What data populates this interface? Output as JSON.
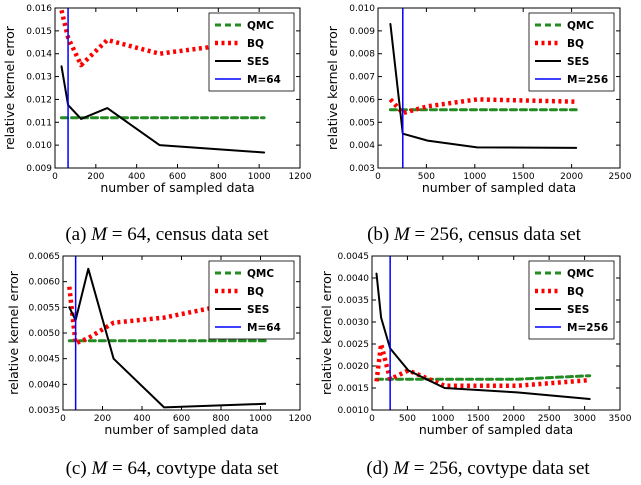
{
  "chart_data": [
    {
      "type": "line",
      "caption": {
        "label": "(a)",
        "param": "M",
        "eq": "= 64,",
        "rest": "census data set"
      },
      "xlabel": "number of sampled data",
      "ylabel": "relative kernel error",
      "xlim": [
        0,
        1200
      ],
      "ylim": [
        0.009,
        0.016
      ],
      "xticks": [
        "0",
        "200",
        "400",
        "600",
        "800",
        "1000",
        "1200"
      ],
      "yticks": [
        "0.009",
        "0.010",
        "0.011",
        "0.012",
        "0.013",
        "0.014",
        "0.015",
        "0.016"
      ],
      "vline": 64,
      "legend_position": "top-right",
      "series": [
        {
          "name": "QMC",
          "color": "#228b22",
          "style": "dashed",
          "x": [
            32,
            64,
            128,
            256,
            512,
            1024
          ],
          "y": [
            0.0112,
            0.0112,
            0.0112,
            0.0112,
            0.0112,
            0.0112
          ]
        },
        {
          "name": "BQ",
          "color": "#ff0000",
          "style": "dotted",
          "x": [
            32,
            64,
            128,
            256,
            512,
            1024
          ],
          "y": [
            0.0159,
            0.0147,
            0.0135,
            0.0146,
            0.014,
            0.0146
          ]
        },
        {
          "name": "SES",
          "color": "#000000",
          "style": "solid",
          "x": [
            32,
            64,
            128,
            256,
            512,
            1024
          ],
          "y": [
            0.01345,
            0.01175,
            0.01115,
            0.01162,
            0.01,
            0.00968
          ]
        },
        {
          "name": "M=64",
          "color": "#0000ff",
          "style": "vline"
        }
      ]
    },
    {
      "type": "line",
      "caption": {
        "label": "(b)",
        "param": "M",
        "eq": "= 256,",
        "rest": "census data set"
      },
      "xlabel": "number of sampled data",
      "ylabel": "relative kernel error",
      "xlim": [
        0,
        2500
      ],
      "ylim": [
        0.003,
        0.01
      ],
      "xticks": [
        "0",
        "500",
        "1000",
        "1500",
        "2000",
        "2500"
      ],
      "yticks": [
        "0.003",
        "0.004",
        "0.005",
        "0.006",
        "0.007",
        "0.008",
        "0.009",
        "0.010"
      ],
      "vline": 256,
      "legend_position": "top-right",
      "series": [
        {
          "name": "QMC",
          "color": "#228b22",
          "style": "dashed",
          "x": [
            128,
            256,
            512,
            1024,
            2048
          ],
          "y": [
            0.00555,
            0.00555,
            0.00555,
            0.00555,
            0.00555
          ]
        },
        {
          "name": "BQ",
          "color": "#ff0000",
          "style": "dotted",
          "x": [
            128,
            256,
            512,
            1024,
            2048
          ],
          "y": [
            0.006,
            0.0054,
            0.0057,
            0.006,
            0.0059
          ]
        },
        {
          "name": "SES",
          "color": "#000000",
          "style": "solid",
          "x": [
            128,
            256,
            512,
            1024,
            2048
          ],
          "y": [
            0.0093,
            0.0045,
            0.0042,
            0.0039,
            0.00388
          ]
        },
        {
          "name": "M=256",
          "color": "#0000ff",
          "style": "vline"
        }
      ]
    },
    {
      "type": "line",
      "caption": {
        "label": "(c)",
        "param": "M",
        "eq": "= 64,",
        "rest": "covtype data set"
      },
      "xlabel": "number of sampled data",
      "ylabel": "relative kernel error",
      "xlim": [
        0,
        1200
      ],
      "ylim": [
        0.0035,
        0.0065
      ],
      "xticks": [
        "0",
        "200",
        "400",
        "600",
        "800",
        "1000",
        "1200"
      ],
      "yticks": [
        "0.0035",
        "0.0040",
        "0.0045",
        "0.0050",
        "0.0055",
        "0.0060",
        "0.0065"
      ],
      "vline": 64,
      "legend_position": "top-right",
      "series": [
        {
          "name": "QMC",
          "color": "#228b22",
          "style": "dashed",
          "x": [
            32,
            64,
            128,
            256,
            512,
            1024
          ],
          "y": [
            0.00485,
            0.00485,
            0.00485,
            0.00485,
            0.00485,
            0.00485
          ]
        },
        {
          "name": "BQ",
          "color": "#ff0000",
          "style": "dotted",
          "x": [
            32,
            64,
            128,
            256,
            512,
            1024
          ],
          "y": [
            0.0059,
            0.0048,
            0.0049,
            0.0052,
            0.0053,
            0.0057
          ]
        },
        {
          "name": "SES",
          "color": "#000000",
          "style": "solid",
          "x": [
            32,
            64,
            128,
            256,
            512,
            1024
          ],
          "y": [
            0.0055,
            0.00525,
            0.00625,
            0.0045,
            0.00355,
            0.00362
          ]
        },
        {
          "name": "M=64",
          "color": "#0000ff",
          "style": "vline"
        }
      ]
    },
    {
      "type": "line",
      "caption": {
        "label": "(d)",
        "param": "M",
        "eq": "= 256,",
        "rest": "covtype data set"
      },
      "xlabel": "number of sampled data",
      "ylabel": "relative kernel error",
      "xlim": [
        0,
        3500
      ],
      "ylim": [
        0.001,
        0.0045
      ],
      "xticks": [
        "0",
        "500",
        "1000",
        "1500",
        "2000",
        "2500",
        "3000",
        "3500"
      ],
      "yticks": [
        "0.0010",
        "0.0015",
        "0.0020",
        "0.0025",
        "0.0030",
        "0.0035",
        "0.0040",
        "0.0045"
      ],
      "vline": 256,
      "legend_position": "top-right",
      "series": [
        {
          "name": "QMC",
          "color": "#228b22",
          "style": "dashed",
          "x": [
            64,
            128,
            256,
            512,
            1024,
            2048,
            3072
          ],
          "y": [
            0.0017,
            0.0017,
            0.0017,
            0.0017,
            0.0017,
            0.0017,
            0.00178
          ]
        },
        {
          "name": "BQ",
          "color": "#ff0000",
          "style": "dotted",
          "x": [
            64,
            128,
            256,
            512,
            1024,
            2048,
            3072
          ],
          "y": [
            0.00165,
            0.0025,
            0.0017,
            0.0019,
            0.00155,
            0.00155,
            0.00168
          ]
        },
        {
          "name": "SES",
          "color": "#000000",
          "style": "solid",
          "x": [
            64,
            128,
            256,
            512,
            1024,
            2048,
            3072
          ],
          "y": [
            0.0041,
            0.0031,
            0.0024,
            0.0019,
            0.0015,
            0.0014,
            0.00125
          ]
        },
        {
          "name": "M=256",
          "color": "#0000ff",
          "style": "vline"
        }
      ]
    }
  ]
}
